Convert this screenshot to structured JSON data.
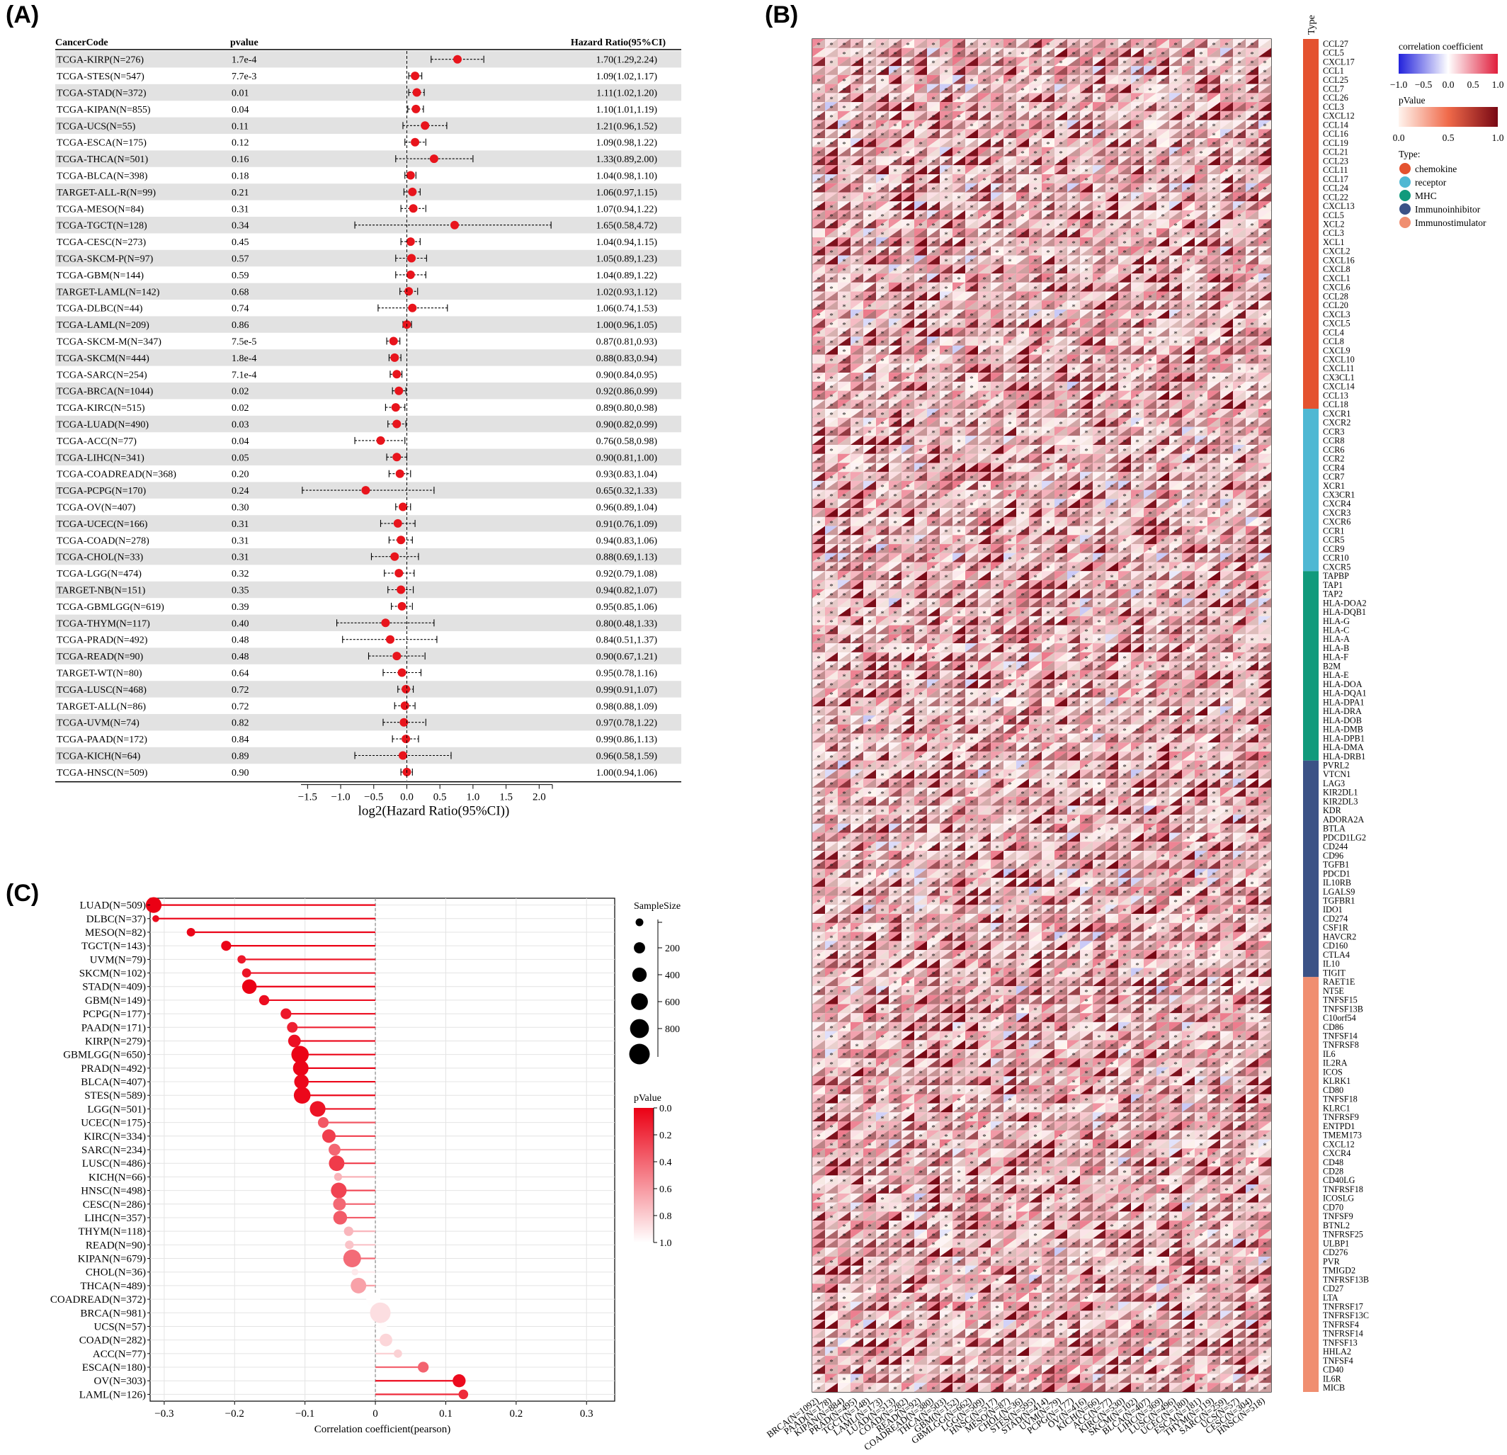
{
  "panels": {
    "A": "(A)",
    "B": "(B)",
    "C": "(C)"
  },
  "chart_data": [
    {
      "type": "forest",
      "panel": "(A)",
      "columns": {
        "code": "CancerCode",
        "p": "pvalue",
        "hr": "Hazard Ratio(95%CI)"
      },
      "xlabel": "log2(Hazard Ratio(95%CI))",
      "xlim": [
        -1.6,
        2.2
      ],
      "xticks": [
        -1.5,
        -1.0,
        -0.5,
        0.0,
        0.5,
        1.0,
        1.5,
        2.0
      ],
      "rows": [
        {
          "code": "TCGA-KIRP(N=276)",
          "p": "1.7e-4",
          "hr_text": "1.70(1.29,2.24)",
          "hr": 1.7,
          "lo": 1.29,
          "hi": 2.24
        },
        {
          "code": "TCGA-STES(N=547)",
          "p": "7.7e-3",
          "hr_text": "1.09(1.02,1.17)",
          "hr": 1.09,
          "lo": 1.02,
          "hi": 1.17
        },
        {
          "code": "TCGA-STAD(N=372)",
          "p": "0.01",
          "hr_text": "1.11(1.02,1.20)",
          "hr": 1.11,
          "lo": 1.02,
          "hi": 1.2
        },
        {
          "code": "TCGA-KIPAN(N=855)",
          "p": "0.04",
          "hr_text": "1.10(1.01,1.19)",
          "hr": 1.1,
          "lo": 1.01,
          "hi": 1.19
        },
        {
          "code": "TCGA-UCS(N=55)",
          "p": "0.11",
          "hr_text": "1.21(0.96,1.52)",
          "hr": 1.21,
          "lo": 0.96,
          "hi": 1.52
        },
        {
          "code": "TCGA-ESCA(N=175)",
          "p": "0.12",
          "hr_text": "1.09(0.98,1.22)",
          "hr": 1.09,
          "lo": 0.98,
          "hi": 1.22
        },
        {
          "code": "TCGA-THCA(N=501)",
          "p": "0.16",
          "hr_text": "1.33(0.89,2.00)",
          "hr": 1.33,
          "lo": 0.89,
          "hi": 2.0
        },
        {
          "code": "TCGA-BLCA(N=398)",
          "p": "0.18",
          "hr_text": "1.04(0.98,1.10)",
          "hr": 1.04,
          "lo": 0.98,
          "hi": 1.1
        },
        {
          "code": "TARGET-ALL-R(N=99)",
          "p": "0.21",
          "hr_text": "1.06(0.97,1.15)",
          "hr": 1.06,
          "lo": 0.97,
          "hi": 1.15
        },
        {
          "code": "TCGA-MESO(N=84)",
          "p": "0.31",
          "hr_text": "1.07(0.94,1.22)",
          "hr": 1.07,
          "lo": 0.94,
          "hi": 1.22
        },
        {
          "code": "TCGA-TGCT(N=128)",
          "p": "0.34",
          "hr_text": "1.65(0.58,4.72)",
          "hr": 1.65,
          "lo": 0.58,
          "hi": 4.72
        },
        {
          "code": "TCGA-CESC(N=273)",
          "p": "0.45",
          "hr_text": "1.04(0.94,1.15)",
          "hr": 1.04,
          "lo": 0.94,
          "hi": 1.15
        },
        {
          "code": "TCGA-SKCM-P(N=97)",
          "p": "0.57",
          "hr_text": "1.05(0.89,1.23)",
          "hr": 1.05,
          "lo": 0.89,
          "hi": 1.23
        },
        {
          "code": "TCGA-GBM(N=144)",
          "p": "0.59",
          "hr_text": "1.04(0.89,1.22)",
          "hr": 1.04,
          "lo": 0.89,
          "hi": 1.22
        },
        {
          "code": "TARGET-LAML(N=142)",
          "p": "0.68",
          "hr_text": "1.02(0.93,1.12)",
          "hr": 1.02,
          "lo": 0.93,
          "hi": 1.12
        },
        {
          "code": "TCGA-DLBC(N=44)",
          "p": "0.74",
          "hr_text": "1.06(0.74,1.53)",
          "hr": 1.06,
          "lo": 0.74,
          "hi": 1.53
        },
        {
          "code": "TCGA-LAML(N=209)",
          "p": "0.86",
          "hr_text": "1.00(0.96,1.05)",
          "hr": 1.0,
          "lo": 0.96,
          "hi": 1.05
        },
        {
          "code": "TCGA-SKCM-M(N=347)",
          "p": "7.5e-5",
          "hr_text": "0.87(0.81,0.93)",
          "hr": 0.87,
          "lo": 0.81,
          "hi": 0.93
        },
        {
          "code": "TCGA-SKCM(N=444)",
          "p": "1.8e-4",
          "hr_text": "0.88(0.83,0.94)",
          "hr": 0.88,
          "lo": 0.83,
          "hi": 0.94
        },
        {
          "code": "TCGA-SARC(N=254)",
          "p": "7.1e-4",
          "hr_text": "0.90(0.84,0.95)",
          "hr": 0.9,
          "lo": 0.84,
          "hi": 0.95
        },
        {
          "code": "TCGA-BRCA(N=1044)",
          "p": "0.02",
          "hr_text": "0.92(0.86,0.99)",
          "hr": 0.92,
          "lo": 0.86,
          "hi": 0.99
        },
        {
          "code": "TCGA-KIRC(N=515)",
          "p": "0.02",
          "hr_text": "0.89(0.80,0.98)",
          "hr": 0.89,
          "lo": 0.8,
          "hi": 0.98
        },
        {
          "code": "TCGA-LUAD(N=490)",
          "p": "0.03",
          "hr_text": "0.90(0.82,0.99)",
          "hr": 0.9,
          "lo": 0.82,
          "hi": 0.99
        },
        {
          "code": "TCGA-ACC(N=77)",
          "p": "0.04",
          "hr_text": "0.76(0.58,0.98)",
          "hr": 0.76,
          "lo": 0.58,
          "hi": 0.98
        },
        {
          "code": "TCGA-LIHC(N=341)",
          "p": "0.05",
          "hr_text": "0.90(0.81,1.00)",
          "hr": 0.9,
          "lo": 0.81,
          "hi": 1.0
        },
        {
          "code": "TCGA-COADREAD(N=368)",
          "p": "0.20",
          "hr_text": "0.93(0.83,1.04)",
          "hr": 0.93,
          "lo": 0.83,
          "hi": 1.04
        },
        {
          "code": "TCGA-PCPG(N=170)",
          "p": "0.24",
          "hr_text": "0.65(0.32,1.33)",
          "hr": 0.65,
          "lo": 0.32,
          "hi": 1.33
        },
        {
          "code": "TCGA-OV(N=407)",
          "p": "0.30",
          "hr_text": "0.96(0.89,1.04)",
          "hr": 0.96,
          "lo": 0.89,
          "hi": 1.04
        },
        {
          "code": "TCGA-UCEC(N=166)",
          "p": "0.31",
          "hr_text": "0.91(0.76,1.09)",
          "hr": 0.91,
          "lo": 0.76,
          "hi": 1.09
        },
        {
          "code": "TCGA-COAD(N=278)",
          "p": "0.31",
          "hr_text": "0.94(0.83,1.06)",
          "hr": 0.94,
          "lo": 0.83,
          "hi": 1.06
        },
        {
          "code": "TCGA-CHOL(N=33)",
          "p": "0.31",
          "hr_text": "0.88(0.69,1.13)",
          "hr": 0.88,
          "lo": 0.69,
          "hi": 1.13
        },
        {
          "code": "TCGA-LGG(N=474)",
          "p": "0.32",
          "hr_text": "0.92(0.79,1.08)",
          "hr": 0.92,
          "lo": 0.79,
          "hi": 1.08
        },
        {
          "code": "TARGET-NB(N=151)",
          "p": "0.35",
          "hr_text": "0.94(0.82,1.07)",
          "hr": 0.94,
          "lo": 0.82,
          "hi": 1.07
        },
        {
          "code": "TCGA-GBMLGG(N=619)",
          "p": "0.39",
          "hr_text": "0.95(0.85,1.06)",
          "hr": 0.95,
          "lo": 0.85,
          "hi": 1.06
        },
        {
          "code": "TCGA-THYM(N=117)",
          "p": "0.40",
          "hr_text": "0.80(0.48,1.33)",
          "hr": 0.8,
          "lo": 0.48,
          "hi": 1.33
        },
        {
          "code": "TCGA-PRAD(N=492)",
          "p": "0.48",
          "hr_text": "0.84(0.51,1.37)",
          "hr": 0.84,
          "lo": 0.51,
          "hi": 1.37
        },
        {
          "code": "TCGA-READ(N=90)",
          "p": "0.48",
          "hr_text": "0.90(0.67,1.21)",
          "hr": 0.9,
          "lo": 0.67,
          "hi": 1.21
        },
        {
          "code": "TARGET-WT(N=80)",
          "p": "0.64",
          "hr_text": "0.95(0.78,1.16)",
          "hr": 0.95,
          "lo": 0.78,
          "hi": 1.16
        },
        {
          "code": "TCGA-LUSC(N=468)",
          "p": "0.72",
          "hr_text": "0.99(0.91,1.07)",
          "hr": 0.99,
          "lo": 0.91,
          "hi": 1.07
        },
        {
          "code": "TARGET-ALL(N=86)",
          "p": "0.72",
          "hr_text": "0.98(0.88,1.09)",
          "hr": 0.98,
          "lo": 0.88,
          "hi": 1.09
        },
        {
          "code": "TCGA-UVM(N=74)",
          "p": "0.82",
          "hr_text": "0.97(0.78,1.22)",
          "hr": 0.97,
          "lo": 0.78,
          "hi": 1.22
        },
        {
          "code": "TCGA-PAAD(N=172)",
          "p": "0.84",
          "hr_text": "0.99(0.86,1.13)",
          "hr": 0.99,
          "lo": 0.86,
          "hi": 1.13
        },
        {
          "code": "TCGA-KICH(N=64)",
          "p": "0.89",
          "hr_text": "0.96(0.58,1.59)",
          "hr": 0.96,
          "lo": 0.58,
          "hi": 1.59
        },
        {
          "code": "TCGA-HNSC(N=509)",
          "p": "0.90",
          "hr_text": "1.00(0.94,1.06)",
          "hr": 1.0,
          "lo": 0.94,
          "hi": 1.06
        }
      ]
    },
    {
      "type": "heatmap",
      "panel": "(B)",
      "type_header": "Type",
      "columns": [
        "BRCA(N=1092)",
        "PAAD(N=178)",
        "KIPAN(N=884)",
        "PRAD(N=495)",
        "TGCT(N=148)",
        "LAML(N=173)",
        "LUAD(N=513)",
        "COAD(N=282)",
        "READ(N=92)",
        "COADREAD(N=380)",
        "THCA(N=503)",
        "GBM(N=152)",
        "GBMLGG(N=662)",
        "LGG(N=509)",
        "HNSC(N=517)",
        "MESO(N=87)",
        "CHOL(N=36)",
        "STES(N=595)",
        "STAD(N=414)",
        "UVM(N=79)",
        "PCPG(N=177)",
        "OV(N=416)",
        "KICH(N=66)",
        "ACC(N=77)",
        "KIRC(N=530)",
        "SKCM(N=102)",
        "BLCA(N=407)",
        "LIHC(N=369)",
        "LUSC(N=496)",
        "UCEC(N=180)",
        "ESCA(N=181)",
        "THYM(N=119)",
        "SARC(N=259)",
        "UCS(N=57)",
        "CESC(N=304)",
        "HNSC(N=518)"
      ],
      "rows": [
        "CCL27",
        "CCL5",
        "CXCL17",
        "CCL1",
        "CCL25",
        "CCL7",
        "CCL26",
        "CCL3",
        "CXCL12",
        "CCL14",
        "CCL16",
        "CCL19",
        "CCL21",
        "CCL23",
        "CCL11",
        "CCL17",
        "CCL24",
        "CCL22",
        "CXCL13",
        "CCL5",
        "XCL2",
        "CCL3",
        "XCL1",
        "CXCL2",
        "CXCL16",
        "CXCL8",
        "CXCL1",
        "CXCL6",
        "CCL28",
        "CCL20",
        "CXCL3",
        "CXCL5",
        "CCL4",
        "CCL8",
        "CXCL9",
        "CXCL10",
        "CXCL11",
        "CX3CL1",
        "CXCL14",
        "CCL13",
        "CCL18",
        "CXCR1",
        "CXCR2",
        "CCR3",
        "CCR8",
        "CCR6",
        "CCR2",
        "CCR4",
        "CCR7",
        "XCR1",
        "CX3CR1",
        "CXCR4",
        "CXCR3",
        "CXCR6",
        "CCR1",
        "CCR5",
        "CCR9",
        "CCR10",
        "CXCR5",
        "TAPBP",
        "TAP1",
        "TAP2",
        "HLA-DOA2",
        "HLA-DQB1",
        "HLA-G",
        "HLA-C",
        "HLA-A",
        "HLA-B",
        "HLA-F",
        "B2M",
        "HLA-E",
        "HLA-DOA",
        "HLA-DQA1",
        "HLA-DPA1",
        "HLA-DRA",
        "HLA-DOB",
        "HLA-DMB",
        "HLA-DPB1",
        "HLA-DMA",
        "HLA-DRB1",
        "PVRL2",
        "VTCN1",
        "LAG3",
        "KIR2DL1",
        "KIR2DL3",
        "KDR",
        "ADORA2A",
        "BTLA",
        "PDCD1LG2",
        "CD244",
        "CD96",
        "TGFB1",
        "PDCD1",
        "IL10RB",
        "LGALS9",
        "TGFBR1",
        "IDO1",
        "CD274",
        "CSF1R",
        "HAVCR2",
        "CD160",
        "CTLA4",
        "IL10",
        "TIGIT",
        "RAET1E",
        "NT5E",
        "TNFSF15",
        "TNFSF13B",
        "C10orf54",
        "CD86",
        "TNFSF14",
        "TNFRSF8",
        "IL6",
        "IL2RA",
        "ICOS",
        "KLRK1",
        "CD80",
        "TNFSF18",
        "KLRC1",
        "TNFRSF9",
        "ENTPD1",
        "TMEM173",
        "CXCL12",
        "CXCR4",
        "CD48",
        "CD28",
        "CD40LG",
        "TNFRSF18",
        "ICOSLG",
        "CD70",
        "TNFSF9",
        "BTNL2",
        "TNFRSF25",
        "ULBP1",
        "CD276",
        "PVR",
        "TMIGD2",
        "TNFRSF13B",
        "CD27",
        "LTA",
        "TNFRSF17",
        "TNFRSF13C",
        "TNFRSF4",
        "TNFRSF14",
        "TNFSF13",
        "HHLA2",
        "TNFSF4",
        "CD40",
        "IL6R",
        "MICB"
      ],
      "groups": [
        {
          "name": "chemokine",
          "count": 41,
          "color": "#e4522f"
        },
        {
          "name": "receptor",
          "count": 18,
          "color": "#4fb8d3"
        },
        {
          "name": "MHC",
          "count": 21,
          "color": "#119a7c"
        },
        {
          "name": "Immunoinhibitor",
          "count": 24,
          "color": "#3b5286"
        },
        {
          "name": "Immunostimulator",
          "count": 46,
          "color": "#f08e70"
        }
      ],
      "legend_corr": {
        "title": "correlation coefficient",
        "ticks": [
          "−1.0",
          "−0.5",
          "0.0",
          "0.5",
          "1.0"
        ]
      },
      "legend_p": {
        "title": "pValue",
        "ticks": [
          "0.0",
          "0.5",
          "1.0"
        ]
      },
      "legend_type": {
        "title": "Type:"
      },
      "star": "*"
    },
    {
      "type": "lollipop",
      "panel": "(C)",
      "xlabel": "Correlation coefficient(pearson)",
      "xlim": [
        -0.32,
        0.34
      ],
      "xticks": [
        -0.3,
        -0.2,
        -0.1,
        0,
        0.1,
        0.2,
        0.3
      ],
      "xtick_labels": [
        "−0.3",
        "−0.2",
        "−0.1",
        "0",
        "0.1",
        "0.2",
        "0.3"
      ],
      "rows": [
        {
          "label": "LUAD(N=509)",
          "r": -0.315,
          "n": 509,
          "p": 0.0
        },
        {
          "label": "DLBC(N=37)",
          "r": -0.312,
          "n": 37,
          "p": 0.04
        },
        {
          "label": "MESO(N=82)",
          "r": -0.262,
          "n": 82,
          "p": 0.02
        },
        {
          "label": "TGCT(N=143)",
          "r": -0.212,
          "n": 143,
          "p": 0.01
        },
        {
          "label": "UVM(N=79)",
          "r": -0.19,
          "n": 79,
          "p": 0.09
        },
        {
          "label": "SKCM(N=102)",
          "r": -0.183,
          "n": 102,
          "p": 0.07
        },
        {
          "label": "STAD(N=409)",
          "r": -0.179,
          "n": 409,
          "p": 0.0
        },
        {
          "label": "GBM(N=149)",
          "r": -0.158,
          "n": 149,
          "p": 0.05
        },
        {
          "label": "PCPG(N=177)",
          "r": -0.127,
          "n": 177,
          "p": 0.09
        },
        {
          "label": "PAAD(N=171)",
          "r": -0.118,
          "n": 171,
          "p": 0.12
        },
        {
          "label": "KIRP(N=279)",
          "r": -0.115,
          "n": 279,
          "p": 0.06
        },
        {
          "label": "GBMLGG(N=650)",
          "r": -0.107,
          "n": 650,
          "p": 0.01
        },
        {
          "label": "PRAD(N=492)",
          "r": -0.106,
          "n": 492,
          "p": 0.02
        },
        {
          "label": "BLCA(N=407)",
          "r": -0.105,
          "n": 407,
          "p": 0.03
        },
        {
          "label": "STES(N=589)",
          "r": -0.104,
          "n": 589,
          "p": 0.03
        },
        {
          "label": "LGG(N=501)",
          "r": -0.082,
          "n": 501,
          "p": 0.07
        },
        {
          "label": "UCEC(N=175)",
          "r": -0.074,
          "n": 175,
          "p": 0.33
        },
        {
          "label": "KIRC(N=334)",
          "r": -0.066,
          "n": 334,
          "p": 0.23
        },
        {
          "label": "SARC(N=234)",
          "r": -0.058,
          "n": 234,
          "p": 0.38
        },
        {
          "label": "LUSC(N=486)",
          "r": -0.055,
          "n": 486,
          "p": 0.22
        },
        {
          "label": "KICH(N=66)",
          "r": -0.053,
          "n": 66,
          "p": 0.67
        },
        {
          "label": "HNSC(N=498)",
          "r": -0.052,
          "n": 498,
          "p": 0.25
        },
        {
          "label": "CESC(N=286)",
          "r": -0.051,
          "n": 286,
          "p": 0.39
        },
        {
          "label": "LIHC(N=357)",
          "r": -0.05,
          "n": 357,
          "p": 0.34
        },
        {
          "label": "THYM(N=118)",
          "r": -0.038,
          "n": 118,
          "p": 0.68
        },
        {
          "label": "READ(N=90)",
          "r": -0.037,
          "n": 90,
          "p": 0.73
        },
        {
          "label": "KIPAN(N=679)",
          "r": -0.033,
          "n": 679,
          "p": 0.4
        },
        {
          "label": "CHOL(N=36)",
          "r": -0.029,
          "n": 36,
          "p": 0.87
        },
        {
          "label": "THCA(N=489)",
          "r": -0.024,
          "n": 489,
          "p": 0.6
        },
        {
          "label": "COADREAD(N=372)",
          "r": -0.003,
          "n": 372,
          "p": 0.95
        },
        {
          "label": "BRCA(N=981)",
          "r": 0.007,
          "n": 981,
          "p": 0.83
        },
        {
          "label": "UCS(N=57)",
          "r": 0.011,
          "n": 57,
          "p": 0.94
        },
        {
          "label": "COAD(N=282)",
          "r": 0.015,
          "n": 282,
          "p": 0.8
        },
        {
          "label": "ACC(N=77)",
          "r": 0.032,
          "n": 77,
          "p": 0.78
        },
        {
          "label": "ESCA(N=180)",
          "r": 0.068,
          "n": 180,
          "p": 0.37
        },
        {
          "label": "OV(N=303)",
          "r": 0.119,
          "n": 303,
          "p": 0.04
        },
        {
          "label": "LAML(N=126)",
          "r": 0.125,
          "n": 126,
          "p": 0.16
        }
      ],
      "size_legend": {
        "title": "SampleSize",
        "ticks": [
          200,
          400,
          600,
          800
        ]
      },
      "p_legend": {
        "title": "pValue",
        "ticks": [
          "0.0",
          "0.2",
          "0.4",
          "0.6",
          "0.8",
          "1.0"
        ]
      }
    }
  ]
}
